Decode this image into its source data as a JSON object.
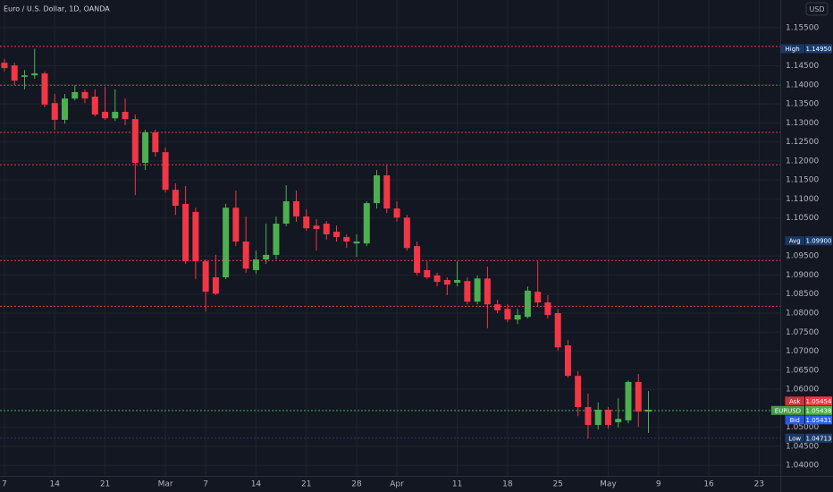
{
  "chart_data": {
    "type": "candlestick",
    "title": "Euro / U.S. Dollar, 1D, OANDA",
    "currency": "USD",
    "up_color": "#4caf50",
    "down_color": "#f23645",
    "grid": true,
    "x": [
      0,
      1,
      2,
      3,
      4,
      5,
      6,
      7,
      8,
      9,
      10,
      11,
      12,
      13,
      14,
      15,
      16,
      17,
      18,
      19,
      20,
      21,
      22,
      23,
      24,
      25,
      26,
      27,
      28,
      29,
      30,
      31,
      32,
      33,
      34,
      35,
      36,
      37,
      38,
      39,
      40,
      41,
      42,
      43,
      44,
      45,
      46,
      47,
      48,
      49,
      50,
      51,
      52,
      53,
      54,
      55,
      56,
      57,
      58,
      59,
      60,
      61,
      62,
      63,
      64
    ],
    "open": [
      1.1458,
      1.1451,
      1.1421,
      1.1425,
      1.143,
      1.1352,
      1.1308,
      1.1364,
      1.1381,
      1.1369,
      1.1329,
      1.1312,
      1.1329,
      1.131,
      1.1195,
      1.1275,
      1.1223,
      1.1124,
      1.1087,
      1.1066,
      1.0936,
      1.0894,
      1.0894,
      1.1077,
      1.0988,
      1.0913,
      1.0941,
      1.0953,
      1.1035,
      1.1094,
      1.1054,
      1.103,
      1.1035,
      1.1014,
      1.1,
      1.0983,
      1.0983,
      1.1089,
      1.1162,
      1.1075,
      1.1051,
      1.0976,
      1.0913,
      1.0899,
      1.0887,
      1.088,
      1.0884,
      1.083,
      1.0891,
      1.0823,
      1.0811,
      1.0783,
      1.079,
      1.0856,
      1.0828,
      1.08,
      1.0715,
      1.0635,
      1.0553,
      1.0506,
      1.0546,
      1.0513,
      1.0518,
      1.0619,
      1.0541
    ],
    "high": [
      1.1468,
      1.1458,
      1.1439,
      1.1495,
      1.1435,
      1.1376,
      1.1376,
      1.1399,
      1.1388,
      1.1388,
      1.1395,
      1.1388,
      1.1364,
      1.1322,
      1.1282,
      1.1282,
      1.1235,
      1.1141,
      1.1134,
      1.1077,
      1.0941,
      1.0953,
      1.1087,
      1.1122,
      1.1054,
      1.0964,
      1.1035,
      1.1054,
      1.1136,
      1.1122,
      1.1073,
      1.1047,
      1.1042,
      1.103,
      1.1007,
      1.1007,
      1.1094,
      1.1176,
      1.1188,
      1.1094,
      1.1058,
      1.0988,
      1.0936,
      1.0906,
      1.0894,
      1.0936,
      1.0894,
      1.0899,
      1.0922,
      1.0835,
      1.0823,
      1.0811,
      1.087,
      1.0936,
      1.0847,
      1.0811,
      1.0729,
      1.0647,
      1.0588,
      1.0565,
      1.0553,
      1.0576,
      1.0623,
      1.064,
      1.0595
    ],
    "low": [
      1.1435,
      1.1399,
      1.1388,
      1.1416,
      1.1341,
      1.1282,
      1.1298,
      1.1359,
      1.1352,
      1.1317,
      1.1308,
      1.1305,
      1.1294,
      1.111,
      1.1176,
      1.1211,
      1.1117,
      1.1058,
      1.0929,
      1.0889,
      1.0804,
      1.0847,
      1.0889,
      1.0976,
      1.0906,
      1.0903,
      1.0929,
      1.0941,
      1.1028,
      1.104,
      1.1016,
      1.0964,
      1.0993,
      1.0988,
      1.0971,
      1.0948,
      1.0976,
      1.1075,
      1.1063,
      1.104,
      1.0964,
      1.0899,
      1.0889,
      1.087,
      1.0847,
      1.087,
      1.0823,
      1.0823,
      1.076,
      1.08,
      1.0776,
      1.0771,
      1.0786,
      1.0819,
      1.0786,
      1.0701,
      1.063,
      1.0529,
      1.047,
      1.0494,
      1.0496,
      1.0499,
      1.051,
      1.0501,
      1.0485
    ],
    "close": [
      1.1444,
      1.1411,
      1.1425,
      1.143,
      1.1348,
      1.1308,
      1.1364,
      1.1381,
      1.1364,
      1.1322,
      1.1312,
      1.1329,
      1.131,
      1.1195,
      1.1275,
      1.1223,
      1.1124,
      1.1082,
      1.0936,
      1.0936,
      1.0856,
      1.0851,
      1.1077,
      1.0988,
      1.0917,
      1.0941,
      1.0953,
      1.1035,
      1.1094,
      1.1054,
      1.1023,
      1.1021,
      1.1007,
      1.1,
      1.0988,
      1.0988,
      1.1089,
      1.1162,
      1.1075,
      1.1051,
      1.0971,
      1.0906,
      1.0894,
      1.0882,
      1.0875,
      1.0887,
      1.083,
      1.0891,
      1.0823,
      1.0807,
      1.0783,
      1.0795,
      1.0859,
      1.0828,
      1.0795,
      1.071,
      1.0635,
      1.0553,
      1.0506,
      1.0546,
      1.0506,
      1.0522,
      1.0619,
      1.0541,
      1.0546
    ],
    "xlim": [
      -0.44,
      77.1
    ],
    "xticks": [
      {
        "value": 0,
        "label": "7"
      },
      {
        "value": 5,
        "label": "14"
      },
      {
        "value": 10,
        "label": "21"
      },
      {
        "value": 16,
        "label": "Mar"
      },
      {
        "value": 20,
        "label": "7"
      },
      {
        "value": 25,
        "label": "14"
      },
      {
        "value": 30,
        "label": "21"
      },
      {
        "value": 35,
        "label": "28"
      },
      {
        "value": 39,
        "label": "Apr"
      },
      {
        "value": 45,
        "label": "11"
      },
      {
        "value": 50,
        "label": "18"
      },
      {
        "value": 55,
        "label": "25"
      },
      {
        "value": 60,
        "label": "May"
      },
      {
        "value": 65,
        "label": "9"
      },
      {
        "value": 70,
        "label": "16"
      },
      {
        "value": 75,
        "label": "23"
      }
    ],
    "ylim": [
      1.0372,
      1.1623
    ],
    "yticks": [
      {
        "value": 1.155,
        "label": "1.15500"
      },
      {
        "value": 1.145,
        "label": "1.14500"
      },
      {
        "value": 1.14,
        "label": "1.14000"
      },
      {
        "value": 1.135,
        "label": "1.13500"
      },
      {
        "value": 1.13,
        "label": "1.13000"
      },
      {
        "value": 1.125,
        "label": "1.12500"
      },
      {
        "value": 1.12,
        "label": "1.12000"
      },
      {
        "value": 1.115,
        "label": "1.11500"
      },
      {
        "value": 1.11,
        "label": "1.11000"
      },
      {
        "value": 1.105,
        "label": "1.10500"
      },
      {
        "value": 1.095,
        "label": "1.09500"
      },
      {
        "value": 1.09,
        "label": "1.09000"
      },
      {
        "value": 1.085,
        "label": "1.08500"
      },
      {
        "value": 1.08,
        "label": "1.08000"
      },
      {
        "value": 1.075,
        "label": "1.07500"
      },
      {
        "value": 1.07,
        "label": "1.07000"
      },
      {
        "value": 1.065,
        "label": "1.06500"
      },
      {
        "value": 1.06,
        "label": "1.06000"
      },
      {
        "value": 1.05,
        "label": "1.05000"
      },
      {
        "value": 1.045,
        "label": "1.04500"
      },
      {
        "value": 1.04,
        "label": "1.04000"
      }
    ],
    "levels": {
      "color": "#f23645",
      "values": [
        1.1501,
        1.1399,
        1.1275,
        1.119,
        1.0938,
        1.0818
      ]
    },
    "price_labels": [
      {
        "name": "High",
        "value": 1.1495,
        "label": "1.14950",
        "color": "#1c3d6e",
        "line": false
      },
      {
        "name": "Avg",
        "value": 1.099,
        "label": "1.09900",
        "color": "#1c3d6e",
        "line": false
      },
      {
        "name": "Ask",
        "value": 1.05454,
        "label": "1.05454",
        "color": "#f23645",
        "line": false
      },
      {
        "name": "EURUSD",
        "value": 1.05438,
        "label": "1.05438",
        "color": "#4caf50",
        "line": true
      },
      {
        "name": "Bid",
        "value": 1.05431,
        "label": "1.05431",
        "color": "#2962ff",
        "line": false
      },
      {
        "name": "Low",
        "value": 1.04713,
        "label": "1.04713",
        "color": "#1c3d6e",
        "line": true
      }
    ]
  }
}
